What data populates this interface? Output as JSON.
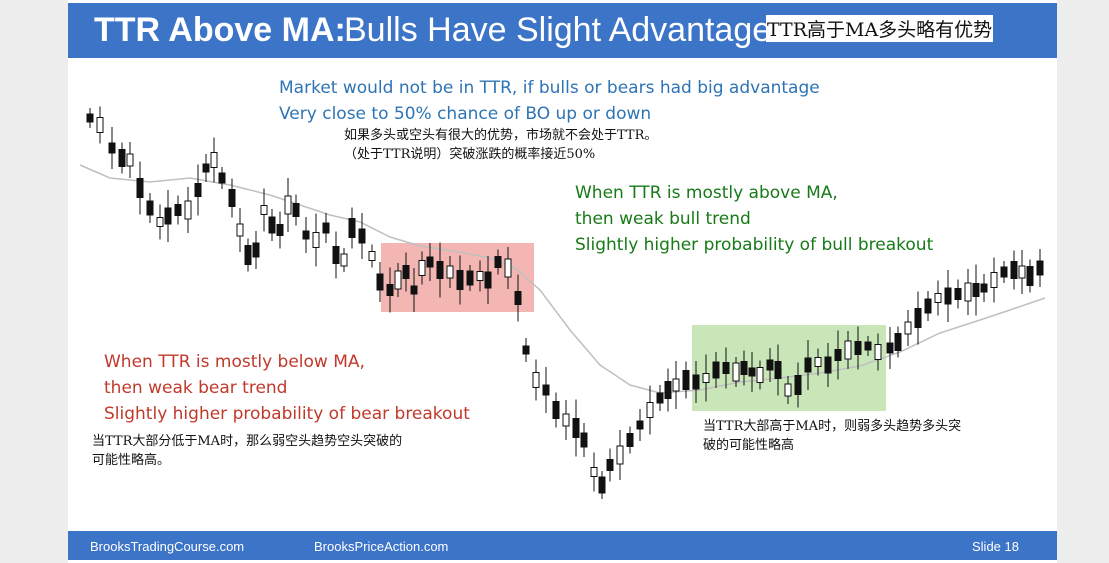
{
  "header": {
    "title_bold": "TTR Above MA:",
    "title_rest": "Bulls Have Slight Advantage",
    "title_cn": "TTR高于MA多头略有优势"
  },
  "notes": {
    "top_blue": [
      "Market would not be in TTR, if bulls or bears had big advantage",
      "Very close to 50% chance of BO up or down"
    ],
    "top_cn": [
      "如果多头或空头有很大的优势，市场就不会处于TTR。",
      "（处于TTR说明）突破涨跌的概率接近50%"
    ],
    "green": [
      "When TTR is mostly above MA,",
      "then weak bull trend",
      "Slightly higher probability of bull breakout"
    ],
    "red": [
      "When TTR is mostly below MA,",
      "then weak bear trend",
      "Slightly higher probability of bear breakout"
    ],
    "red_cn": [
      "当TTR大部分低于MA时，那么弱空头趋势空头突破的",
      "可能性略高。"
    ],
    "green_cn": [
      "当TTR大部高于MA时，则弱多头趋势多头突",
      "破的可能性略高"
    ]
  },
  "footer": {
    "left": "BrooksTradingCourse.com",
    "mid": "BrooksPriceAction.com",
    "right": "Slide  18"
  },
  "colors": {
    "header_bg": "#3c74c8",
    "bear_zone": "#f4b6b2",
    "bull_zone": "#c8e6b8",
    "moving_average": "#c0c0c0",
    "candle": "#111111"
  }
}
